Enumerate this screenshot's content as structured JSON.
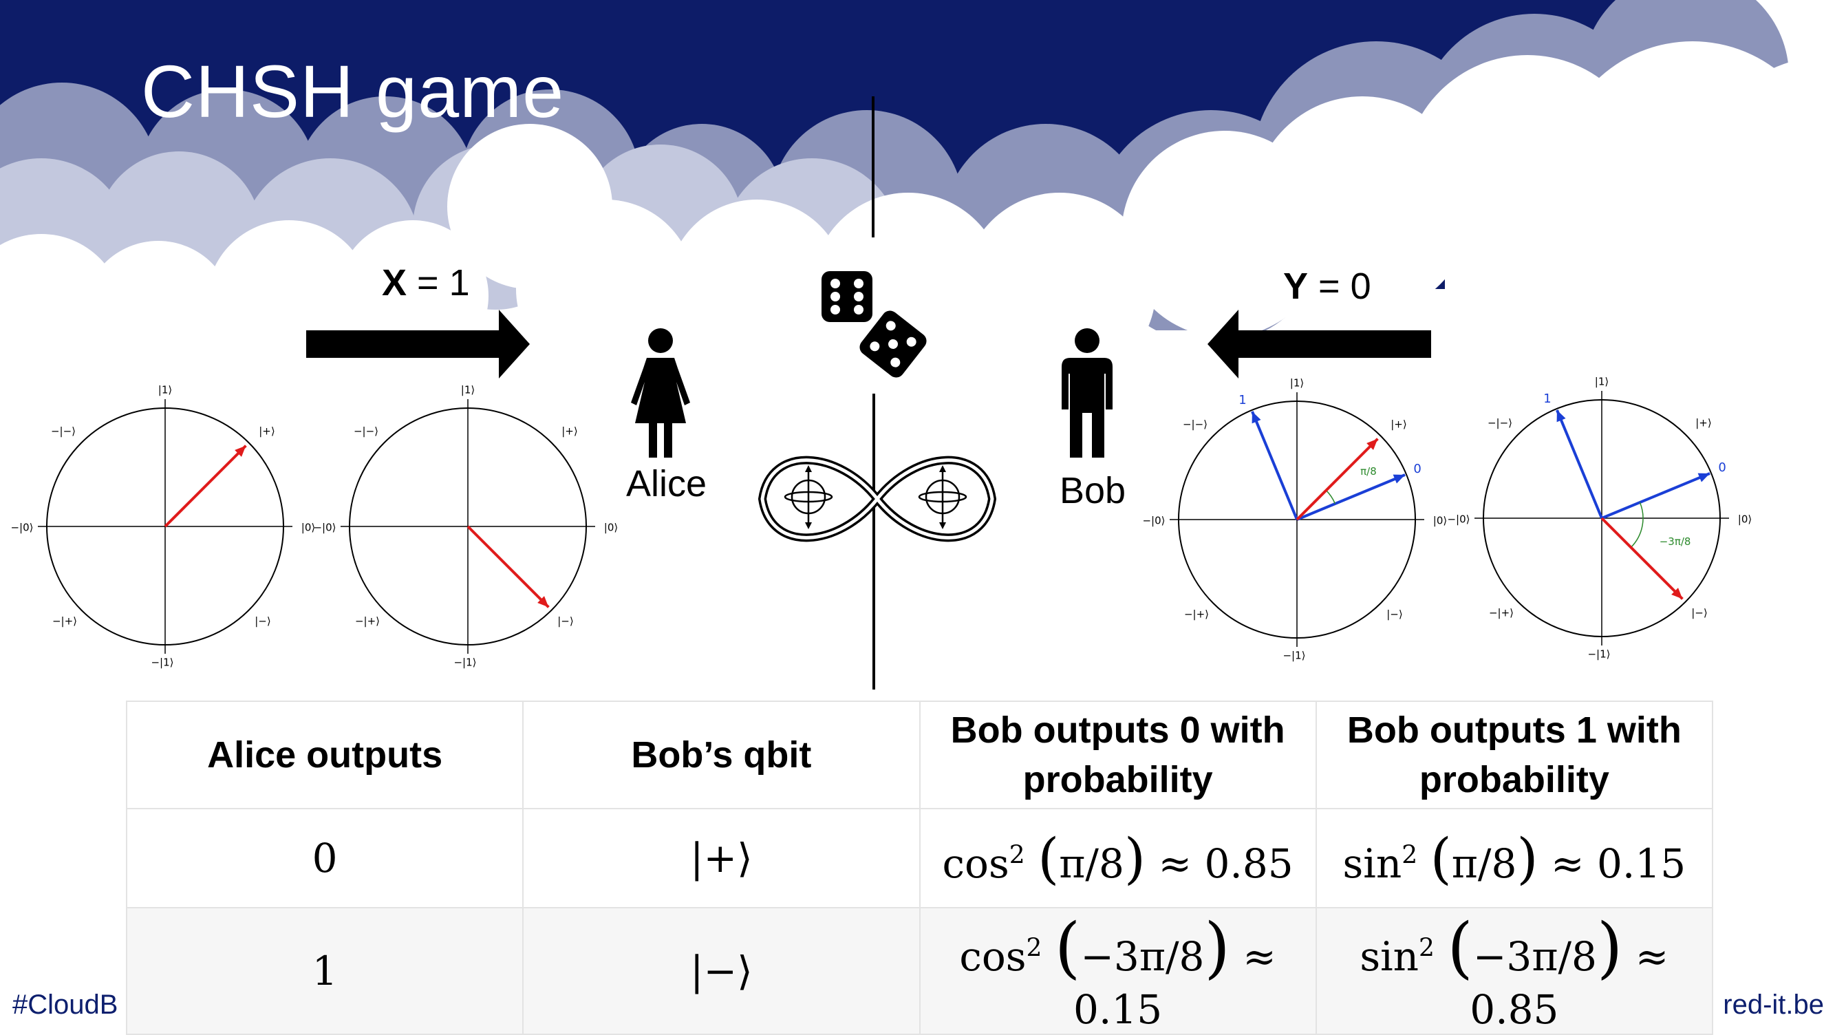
{
  "slide": {
    "title": "CHSH game",
    "footer_left": "#CloudB",
    "footer_right": "red-it.be"
  },
  "colors": {
    "banner": "#0d1c68",
    "cloud_light": "#c3c8de",
    "cloud_mid": "#8c94ba",
    "vector_red": "#e01b1b",
    "vector_blue": "#1a3fd6",
    "angle_green": "#2c8a2c"
  },
  "players": {
    "alice": {
      "name": "Alice",
      "var_name": "X",
      "var_value": "= 1",
      "icon": "woman-icon"
    },
    "bob": {
      "name": "Bob",
      "var_name": "Y",
      "var_value": "= 0",
      "icon": "man-icon"
    }
  },
  "referee": {
    "icons": [
      "die-icon",
      "die-icon"
    ],
    "entanglement_icon": "infinity-entangled-qubits-icon"
  },
  "circle_labels": {
    "top": "|1⟩",
    "bottom": "−|1⟩",
    "right": "|0⟩",
    "left": "−|0⟩",
    "upper_right": "|+⟩",
    "upper_left": "−|−⟩",
    "lower_right": "|−⟩",
    "lower_left": "−|+⟩"
  },
  "diagrams": {
    "alice_plus": {
      "state_angle_deg": 45
    },
    "alice_minus": {
      "state_angle_deg": -45
    },
    "bob_0": {
      "state_angle_deg": 45,
      "basis_0_angle_deg": 22.5,
      "basis_1_angle_deg": 112.5,
      "basis_0_label": "0",
      "basis_1_label": "1",
      "angle_label": "π/8"
    },
    "bob_1": {
      "state_angle_deg": -45,
      "basis_0_angle_deg": 22.5,
      "basis_1_angle_deg": 112.5,
      "basis_0_label": "0",
      "basis_1_label": "1",
      "angle_label": "−3π/8"
    }
  },
  "table": {
    "headers": [
      "Alice outputs",
      "Bob’s qbit",
      "Bob outputs 0 with probability",
      "Bob outputs 1 with probability"
    ],
    "rows": [
      {
        "alice": "0",
        "bob_qbit": "|+⟩",
        "p0_fn": "cos",
        "p0_arg": "π/8",
        "p0_value": "≈ 0.85",
        "p1_fn": "sin",
        "p1_arg": "π/8",
        "p1_value": "≈ 0.15"
      },
      {
        "alice": "1",
        "bob_qbit": "|−⟩",
        "p0_fn": "cos",
        "p0_arg": "−3π/8",
        "p0_value": "≈ 0.15",
        "p1_fn": "sin",
        "p1_arg": "−3π/8",
        "p1_value": "≈ 0.85"
      }
    ]
  }
}
